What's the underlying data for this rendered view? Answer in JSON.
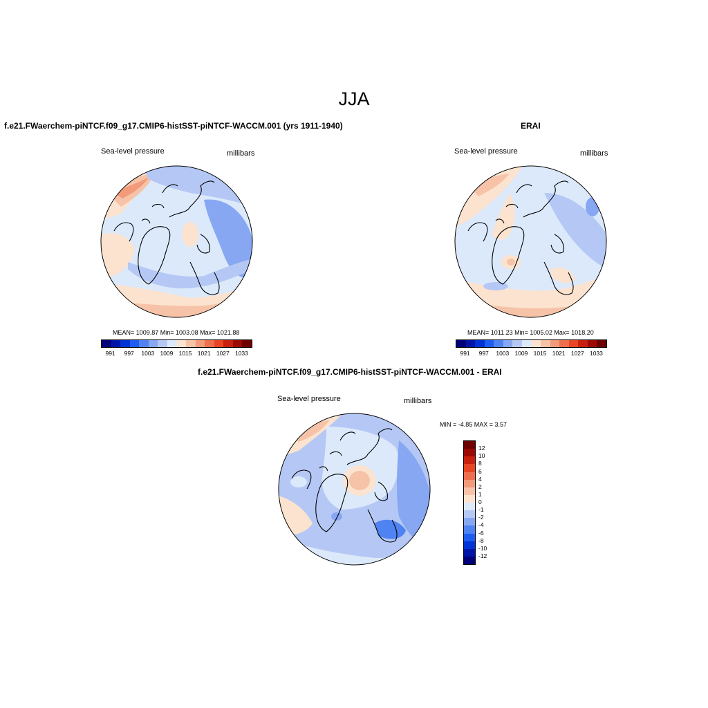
{
  "figure_title": "JJA",
  "panels": [
    {
      "title": "f.e21.FWaerchem-piNTCF.f09_g17.CMIP6-histSST-piNTCF-WACCM.001 (yrs 1911-1940)",
      "variable_label": "Sea-level pressure",
      "units_label": "millibars",
      "stats_text": "MEAN= 1009.87  Min= 1003.08  Max= 1021.88",
      "colorbar_ticks": [
        "991",
        "997",
        "1003",
        "1009",
        "1015",
        "1021",
        "1027",
        "1033"
      ]
    },
    {
      "title": "ERAI",
      "variable_label": "Sea-level pressure",
      "units_label": "millibars",
      "stats_text": "MEAN= 1011.23  Min= 1005.02  Max= 1018.20",
      "colorbar_ticks": [
        "991",
        "997",
        "1003",
        "1009",
        "1015",
        "1021",
        "1027",
        "1033"
      ]
    },
    {
      "title": "f.e21.FWaerchem-piNTCF.f09_g17.CMIP6-histSST-piNTCF-WACCM.001 - ERAI",
      "variable_label": "Sea-level pressure",
      "units_label": "millibars",
      "stats_text": "MIN =  -4.85 MAX =   3.57",
      "colorbar_ticks": [
        "12",
        "10",
        "8",
        "6",
        "4",
        "2",
        "1",
        "0",
        "-1",
        "-2",
        "-4",
        "-6",
        "-8",
        "-10",
        "-12"
      ]
    }
  ],
  "palette_abs": [
    "#00007a",
    "#0014a8",
    "#0033d6",
    "#1f5cf0",
    "#4f83f2",
    "#87a7f2",
    "#b5c8f5",
    "#dce9fb",
    "#fbe3cf",
    "#f6c3a8",
    "#f29a7a",
    "#ee6e4e",
    "#e84524",
    "#c8200e",
    "#9b0a05",
    "#6e0000"
  ],
  "palette_diff": [
    "#6e0000",
    "#9b0a05",
    "#c8200e",
    "#e84524",
    "#ee6e4e",
    "#f29a7a",
    "#f6c3a8",
    "#fbe3cf",
    "#dce9fb",
    "#b5c8f5",
    "#87a7f2",
    "#4f83f2",
    "#1f5cf0",
    "#0033d6",
    "#0014a8",
    "#00007a"
  ]
}
